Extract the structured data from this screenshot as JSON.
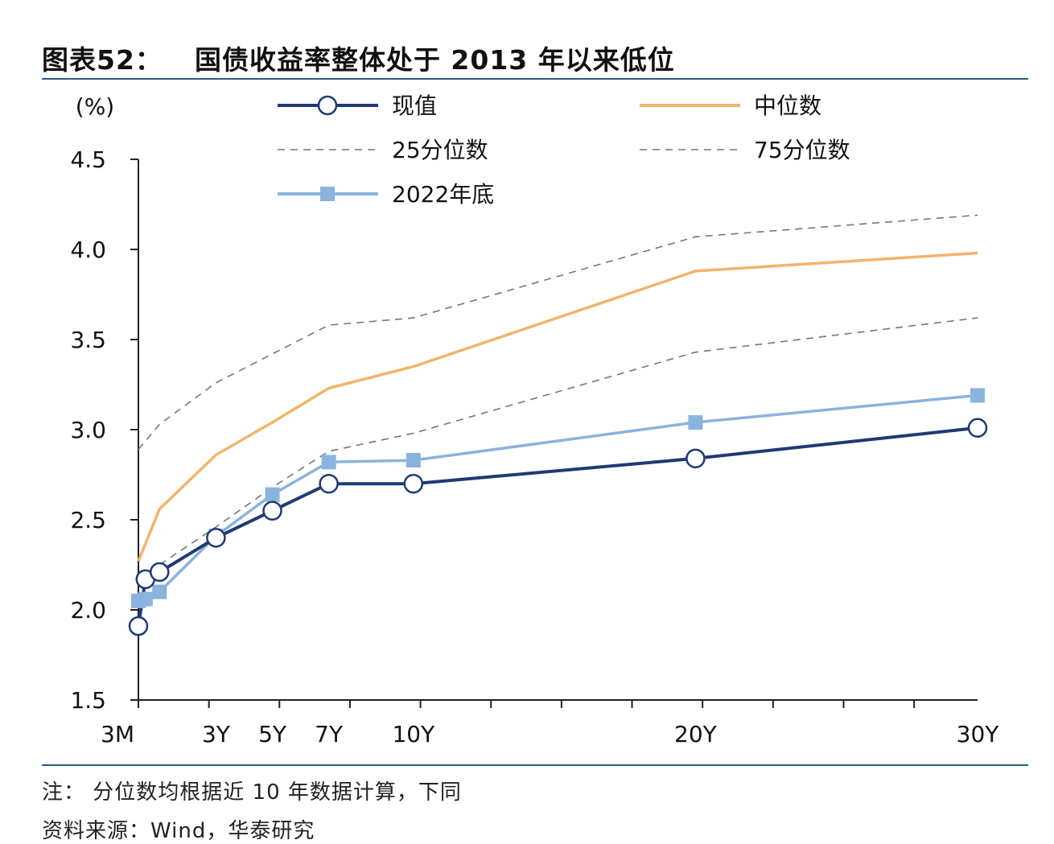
{
  "title": {
    "prefix": "图表52：",
    "text": "国债收益率整体处于 2013 年以来低位"
  },
  "chart_data": {
    "type": "line",
    "ylabel": "(%)",
    "ylim": [
      1.5,
      4.5
    ],
    "yticks": [
      1.5,
      2.0,
      2.5,
      3.0,
      3.5,
      4.0,
      4.5
    ],
    "x_tick_labels": [
      {
        "x": 0.25,
        "label": "3M"
      },
      {
        "x": 3,
        "label": "3Y"
      },
      {
        "x": 5,
        "label": "5Y"
      },
      {
        "x": 7,
        "label": "7Y"
      },
      {
        "x": 10,
        "label": "10Y"
      },
      {
        "x": 20,
        "label": "20Y"
      },
      {
        "x": 30,
        "label": "30Y"
      }
    ],
    "x_minor_ticks": [
      0.25,
      2.75,
      5.25,
      7.75,
      10.25,
      12.75,
      15.25,
      17.75,
      20.25,
      22.75,
      25.25,
      27.75
    ],
    "xlim": [
      0.25,
      30
    ],
    "series": [
      {
        "name": "现值",
        "color": "#1f3a73",
        "style": "solid",
        "marker": "circle",
        "points": [
          [
            0.25,
            1.91
          ],
          [
            0.5,
            2.17
          ],
          [
            1,
            2.21
          ],
          [
            3,
            2.4
          ],
          [
            5,
            2.55
          ],
          [
            7,
            2.7
          ],
          [
            10,
            2.7
          ],
          [
            20,
            2.84
          ],
          [
            30,
            3.01
          ]
        ]
      },
      {
        "name": "中位数",
        "color": "#f2b46b",
        "style": "solid",
        "marker": "none",
        "points": [
          [
            0.25,
            2.27
          ],
          [
            1,
            2.56
          ],
          [
            3,
            2.86
          ],
          [
            5,
            3.04
          ],
          [
            7,
            3.23
          ],
          [
            10,
            3.35
          ],
          [
            20,
            3.88
          ],
          [
            30,
            3.98
          ]
        ]
      },
      {
        "name": "25分位数",
        "color": "#777777",
        "style": "dashed",
        "marker": "none",
        "points": [
          [
            0.25,
            2.17
          ],
          [
            1,
            2.25
          ],
          [
            3,
            2.46
          ],
          [
            5,
            2.68
          ],
          [
            7,
            2.88
          ],
          [
            10,
            2.98
          ],
          [
            20,
            3.43
          ],
          [
            30,
            3.62
          ]
        ]
      },
      {
        "name": "75分位数",
        "color": "#777777",
        "style": "dashed",
        "marker": "none",
        "points": [
          [
            0.25,
            2.89
          ],
          [
            1,
            3.03
          ],
          [
            3,
            3.26
          ],
          [
            5,
            3.42
          ],
          [
            7,
            3.58
          ],
          [
            10,
            3.62
          ],
          [
            20,
            4.07
          ],
          [
            30,
            4.19
          ]
        ]
      },
      {
        "name": "2022年底",
        "color": "#8ab4de",
        "style": "solid",
        "marker": "square",
        "points": [
          [
            0.25,
            2.05
          ],
          [
            0.5,
            2.06
          ],
          [
            1,
            2.1
          ],
          [
            3,
            2.41
          ],
          [
            5,
            2.64
          ],
          [
            7,
            2.82
          ],
          [
            10,
            2.83
          ],
          [
            20,
            3.04
          ],
          [
            30,
            3.19
          ]
        ]
      }
    ]
  },
  "footnotes": {
    "note": "注：  分位数均根据近 10 年数据计算，下同",
    "source": "资料来源：Wind，华泰研究"
  }
}
